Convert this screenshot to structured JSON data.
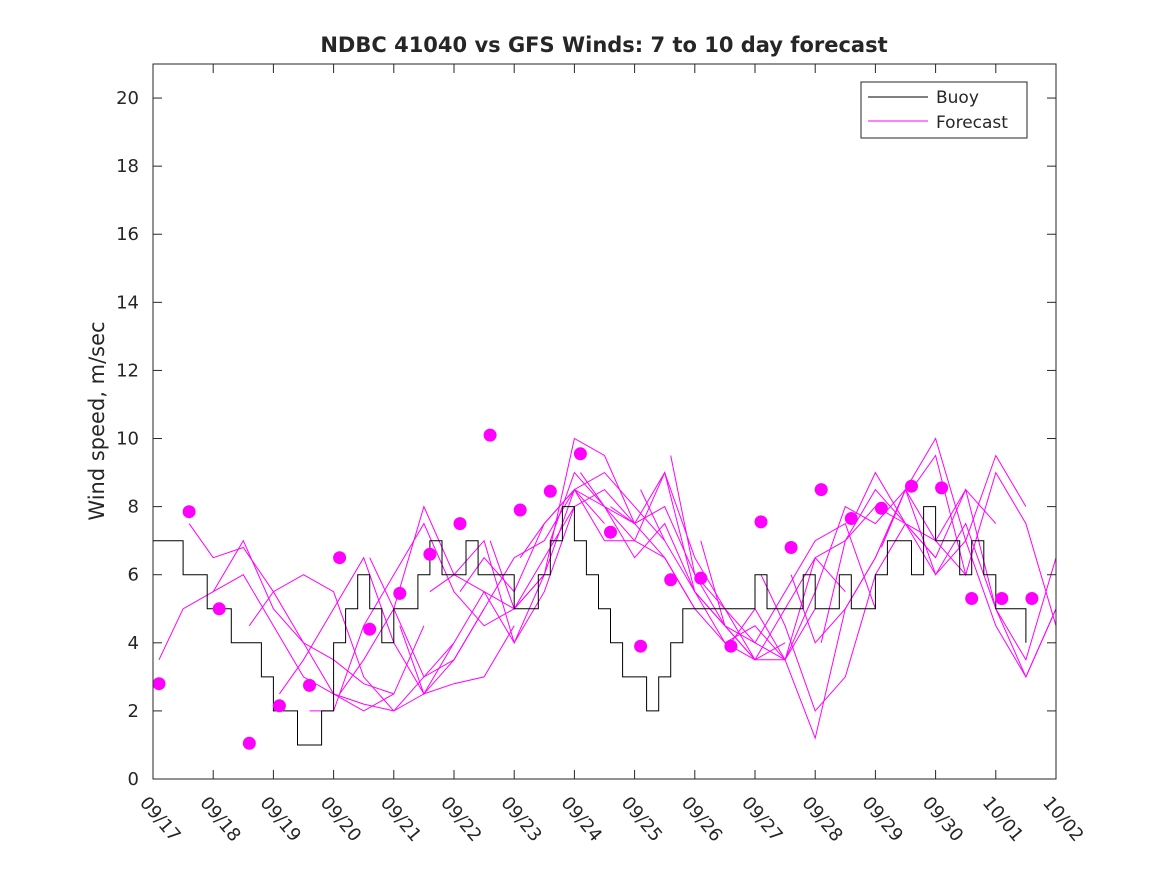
{
  "chart_data": {
    "type": "line",
    "title": "NDBC 41040 vs GFS Winds: 7 to 10 day forecast",
    "xlabel": "",
    "ylabel": "Wind speed, m/sec",
    "xlim": [
      0,
      15
    ],
    "ylim": [
      0,
      21
    ],
    "yticks": [
      0,
      2,
      4,
      6,
      8,
      10,
      12,
      14,
      16,
      18,
      20
    ],
    "xtick_labels": [
      "09/17",
      "09/18",
      "09/19",
      "09/20",
      "09/21",
      "09/22",
      "09/23",
      "09/24",
      "09/25",
      "09/26",
      "09/27",
      "09/28",
      "09/29",
      "09/30",
      "10/01",
      "10/02"
    ],
    "legend": {
      "position": "top-right",
      "entries": [
        {
          "label": "Buoy",
          "color": "#000000"
        },
        {
          "label": "Forecast",
          "color": "#ff00ff"
        }
      ]
    },
    "colors": {
      "buoy": "#000000",
      "forecast": "#ff00ff",
      "axis": "#262626"
    },
    "buoy": {
      "name": "Buoy",
      "x": [
        0,
        0.3,
        0.5,
        0.7,
        0.9,
        1.1,
        1.3,
        1.6,
        1.8,
        2.0,
        2.2,
        2.4,
        2.6,
        2.8,
        3.0,
        3.2,
        3.4,
        3.6,
        3.8,
        4.0,
        4.2,
        4.4,
        4.6,
        4.8,
        5.0,
        5.2,
        5.4,
        5.6,
        5.8,
        6.0,
        6.2,
        6.4,
        6.6,
        6.8,
        7.0,
        7.2,
        7.4,
        7.6,
        7.8,
        8.0,
        8.2,
        8.4,
        8.6,
        8.8,
        9.0,
        9.2,
        9.4,
        9.6,
        9.8,
        10.0,
        10.2,
        10.4,
        10.6,
        10.8,
        11.0,
        11.2,
        11.4,
        11.6,
        11.8,
        12.0,
        12.2,
        12.4,
        12.6,
        12.8,
        13.0,
        13.2,
        13.4,
        13.6,
        13.8,
        14.0,
        14.2,
        14.5
      ],
      "y": [
        7,
        7,
        6,
        6,
        5,
        5,
        4,
        4,
        3,
        2,
        2,
        1,
        1,
        2,
        4,
        5,
        6,
        5,
        4,
        5,
        5,
        6,
        7,
        6,
        6,
        7,
        6,
        6,
        6,
        5,
        5,
        6,
        7,
        8,
        7,
        6,
        5,
        4,
        3,
        3,
        2,
        3,
        4,
        5,
        5,
        5,
        5,
        5,
        5,
        6,
        5,
        5,
        5,
        6,
        5,
        5,
        6,
        5,
        5,
        6,
        7,
        7,
        6,
        8,
        7,
        7,
        6,
        7,
        6,
        5,
        5,
        4
      ]
    },
    "forecast": {
      "name": "Forecast",
      "lines": [
        {
          "x": [
            0.1,
            0.5,
            1.0,
            1.5,
            2.0,
            2.5,
            3.0,
            3.5,
            4.0
          ],
          "y": [
            3.5,
            5.0,
            5.5,
            6.0,
            4.5,
            3.0,
            2.5,
            2.0,
            2.5
          ]
        },
        {
          "x": [
            0.6,
            1.0,
            1.5,
            2.0,
            2.5,
            3.0,
            3.5,
            4.0,
            4.5
          ],
          "y": [
            7.5,
            6.5,
            6.8,
            5.5,
            4.0,
            3.5,
            2.8,
            2.5,
            4.5
          ]
        },
        {
          "x": [
            1.0,
            1.5,
            2.0,
            2.5,
            3.0,
            3.5,
            4.0,
            4.5,
            5.0
          ],
          "y": [
            5.5,
            7.0,
            5.0,
            4.0,
            2.5,
            2.2,
            2.0,
            3.0,
            4.0
          ]
        },
        {
          "x": [
            1.6,
            2.0,
            2.5,
            3.0,
            3.5,
            4.0,
            4.5,
            5.0,
            5.5
          ],
          "y": [
            4.5,
            5.5,
            6.0,
            5.5,
            3.0,
            2.0,
            2.5,
            3.5,
            5.0
          ]
        },
        {
          "x": [
            2.1,
            2.5,
            3.0,
            3.5,
            4.0,
            4.5,
            5.0,
            5.5,
            6.0
          ],
          "y": [
            2.5,
            3.5,
            5.0,
            6.5,
            4.0,
            2.5,
            2.8,
            3.0,
            4.5
          ]
        },
        {
          "x": [
            2.6,
            3.0,
            3.5,
            4.0,
            4.5,
            5.0,
            5.5,
            6.0,
            6.5
          ],
          "y": [
            2.0,
            2.0,
            4.5,
            6.0,
            7.5,
            5.5,
            4.5,
            5.0,
            6.0
          ]
        },
        {
          "x": [
            3.1,
            3.5,
            4.0,
            4.5,
            5.0,
            5.5,
            6.0,
            6.5,
            7.0
          ],
          "y": [
            2.5,
            3.5,
            5.0,
            8.0,
            6.0,
            5.5,
            5.0,
            6.5,
            8.0
          ]
        },
        {
          "x": [
            3.6,
            4.0,
            4.5,
            5.0,
            5.5,
            6.0,
            6.5,
            7.0,
            7.5
          ],
          "y": [
            6.5,
            5.0,
            3.0,
            3.5,
            5.0,
            6.5,
            7.0,
            8.5,
            7.5
          ]
        },
        {
          "x": [
            4.1,
            4.5,
            5.0,
            5.5,
            6.0,
            6.5,
            7.0,
            7.5,
            8.0
          ],
          "y": [
            4.5,
            2.5,
            4.0,
            5.5,
            4.0,
            5.5,
            8.0,
            8.5,
            7.5
          ]
        },
        {
          "x": [
            4.6,
            5.0,
            5.5,
            6.0,
            6.5,
            7.0,
            7.5,
            8.0,
            8.5
          ],
          "y": [
            5.5,
            6.0,
            7.0,
            4.0,
            6.0,
            8.5,
            9.0,
            8.0,
            7.0
          ]
        },
        {
          "x": [
            5.1,
            5.5,
            6.0,
            6.5,
            7.0,
            7.5,
            8.0,
            8.5,
            9.0
          ],
          "y": [
            5.5,
            6.5,
            5.5,
            7.5,
            8.5,
            7.0,
            7.0,
            6.5,
            5.0
          ]
        },
        {
          "x": [
            5.6,
            6.0,
            6.5,
            7.0,
            7.5,
            8.0,
            8.5,
            9.0,
            9.5
          ],
          "y": [
            7.0,
            5.0,
            6.0,
            10.0,
            9.5,
            7.5,
            8.0,
            6.0,
            4.5
          ]
        },
        {
          "x": [
            6.1,
            6.5,
            7.0,
            7.5,
            8.0,
            8.5,
            9.0,
            9.5,
            10.0
          ],
          "y": [
            6.5,
            7.5,
            8.5,
            8.0,
            7.0,
            9.0,
            6.5,
            5.0,
            3.5
          ]
        },
        {
          "x": [
            6.6,
            7.0,
            7.5,
            8.0,
            8.5,
            9.0,
            9.5,
            10.0,
            10.5
          ],
          "y": [
            7.0,
            9.0,
            8.0,
            6.5,
            7.5,
            5.5,
            4.5,
            3.5,
            4.0
          ]
        },
        {
          "x": [
            7.1,
            7.5,
            8.0,
            8.5,
            9.0,
            9.5,
            10.0,
            10.5,
            11.0
          ],
          "y": [
            9.0,
            8.0,
            7.5,
            6.5,
            5.0,
            4.0,
            4.5,
            3.5,
            5.0
          ]
        },
        {
          "x": [
            7.6,
            8.0,
            8.5,
            9.0,
            9.5,
            10.0,
            10.5,
            11.0,
            11.5
          ],
          "y": [
            8.0,
            7.5,
            9.0,
            5.5,
            4.0,
            3.5,
            5.0,
            6.5,
            5.5
          ]
        },
        {
          "x": [
            8.1,
            8.5,
            9.0,
            9.5,
            10.0,
            10.5,
            11.0,
            11.5,
            12.0
          ],
          "y": [
            8.5,
            7.0,
            5.5,
            4.5,
            4.0,
            5.5,
            7.0,
            7.5,
            5.0
          ]
        },
        {
          "x": [
            8.6,
            9.0,
            9.5,
            10.0,
            10.5,
            11.0,
            11.5,
            12.0,
            12.5
          ],
          "y": [
            9.5,
            6.0,
            5.0,
            4.0,
            3.5,
            5.5,
            8.0,
            7.5,
            8.5
          ]
        },
        {
          "x": [
            9.1,
            9.5,
            10.0,
            10.5,
            11.0,
            11.5,
            12.0,
            12.5,
            13.0
          ],
          "y": [
            7.0,
            4.5,
            3.5,
            3.5,
            6.5,
            7.0,
            8.0,
            7.5,
            6.5
          ]
        },
        {
          "x": [
            9.6,
            10.0,
            10.5,
            11.0,
            11.5,
            12.0,
            12.5,
            13.0,
            13.5
          ],
          "y": [
            4.0,
            5.0,
            3.5,
            1.2,
            5.0,
            6.5,
            8.5,
            7.0,
            6.0
          ]
        },
        {
          "x": [
            10.1,
            10.5,
            11.0,
            11.5,
            12.0,
            12.5,
            13.0,
            13.5,
            14.0
          ],
          "y": [
            6.0,
            4.5,
            2.0,
            3.0,
            6.0,
            7.5,
            7.0,
            8.5,
            7.5
          ]
        },
        {
          "x": [
            10.6,
            11.0,
            11.5,
            12.0,
            12.5,
            13.0,
            13.5,
            14.0,
            14.5
          ],
          "y": [
            6.0,
            4.0,
            5.0,
            6.5,
            8.5,
            6.0,
            7.0,
            9.5,
            8.0
          ]
        },
        {
          "x": [
            11.1,
            11.5,
            12.0,
            12.5,
            13.0,
            13.5,
            14.0,
            14.5,
            15.0
          ],
          "y": [
            4.0,
            7.0,
            8.5,
            7.5,
            6.5,
            8.5,
            5.0,
            3.0,
            5.0
          ]
        },
        {
          "x": [
            11.6,
            12.0,
            12.5,
            13.0,
            13.5,
            14.0,
            14.5,
            15.0
          ],
          "y": [
            7.5,
            9.0,
            7.5,
            6.0,
            7.5,
            5.0,
            3.5,
            6.5
          ]
        },
        {
          "x": [
            12.1,
            12.5,
            13.0,
            13.5,
            14.0,
            14.5,
            15.0
          ],
          "y": [
            6.8,
            8.5,
            10.0,
            7.0,
            4.5,
            3.0,
            5.0
          ]
        },
        {
          "x": [
            12.6,
            13.0,
            13.5,
            14.0,
            14.5,
            15.0
          ],
          "y": [
            8.5,
            9.5,
            6.0,
            9.0,
            7.5,
            4.5
          ]
        }
      ]
    },
    "forecast_points": {
      "x": [
        0.1,
        0.6,
        1.1,
        1.6,
        2.1,
        2.6,
        3.1,
        3.6,
        4.1,
        4.6,
        5.1,
        5.6,
        6.1,
        6.6,
        7.1,
        7.6,
        8.1,
        8.6,
        9.1,
        9.6,
        10.1,
        10.6,
        11.1,
        11.6,
        12.1,
        12.6,
        13.1,
        13.6,
        14.1,
        14.6
      ],
      "y": [
        2.8,
        7.85,
        5.0,
        1.05,
        2.15,
        2.75,
        6.5,
        4.4,
        5.45,
        6.6,
        7.5,
        10.1,
        7.9,
        8.45,
        9.55,
        7.25,
        3.9,
        5.85,
        5.9,
        3.9,
        7.55,
        6.8,
        8.5,
        7.65,
        7.95,
        8.6,
        8.55,
        5.3,
        5.3,
        5.3
      ]
    }
  }
}
